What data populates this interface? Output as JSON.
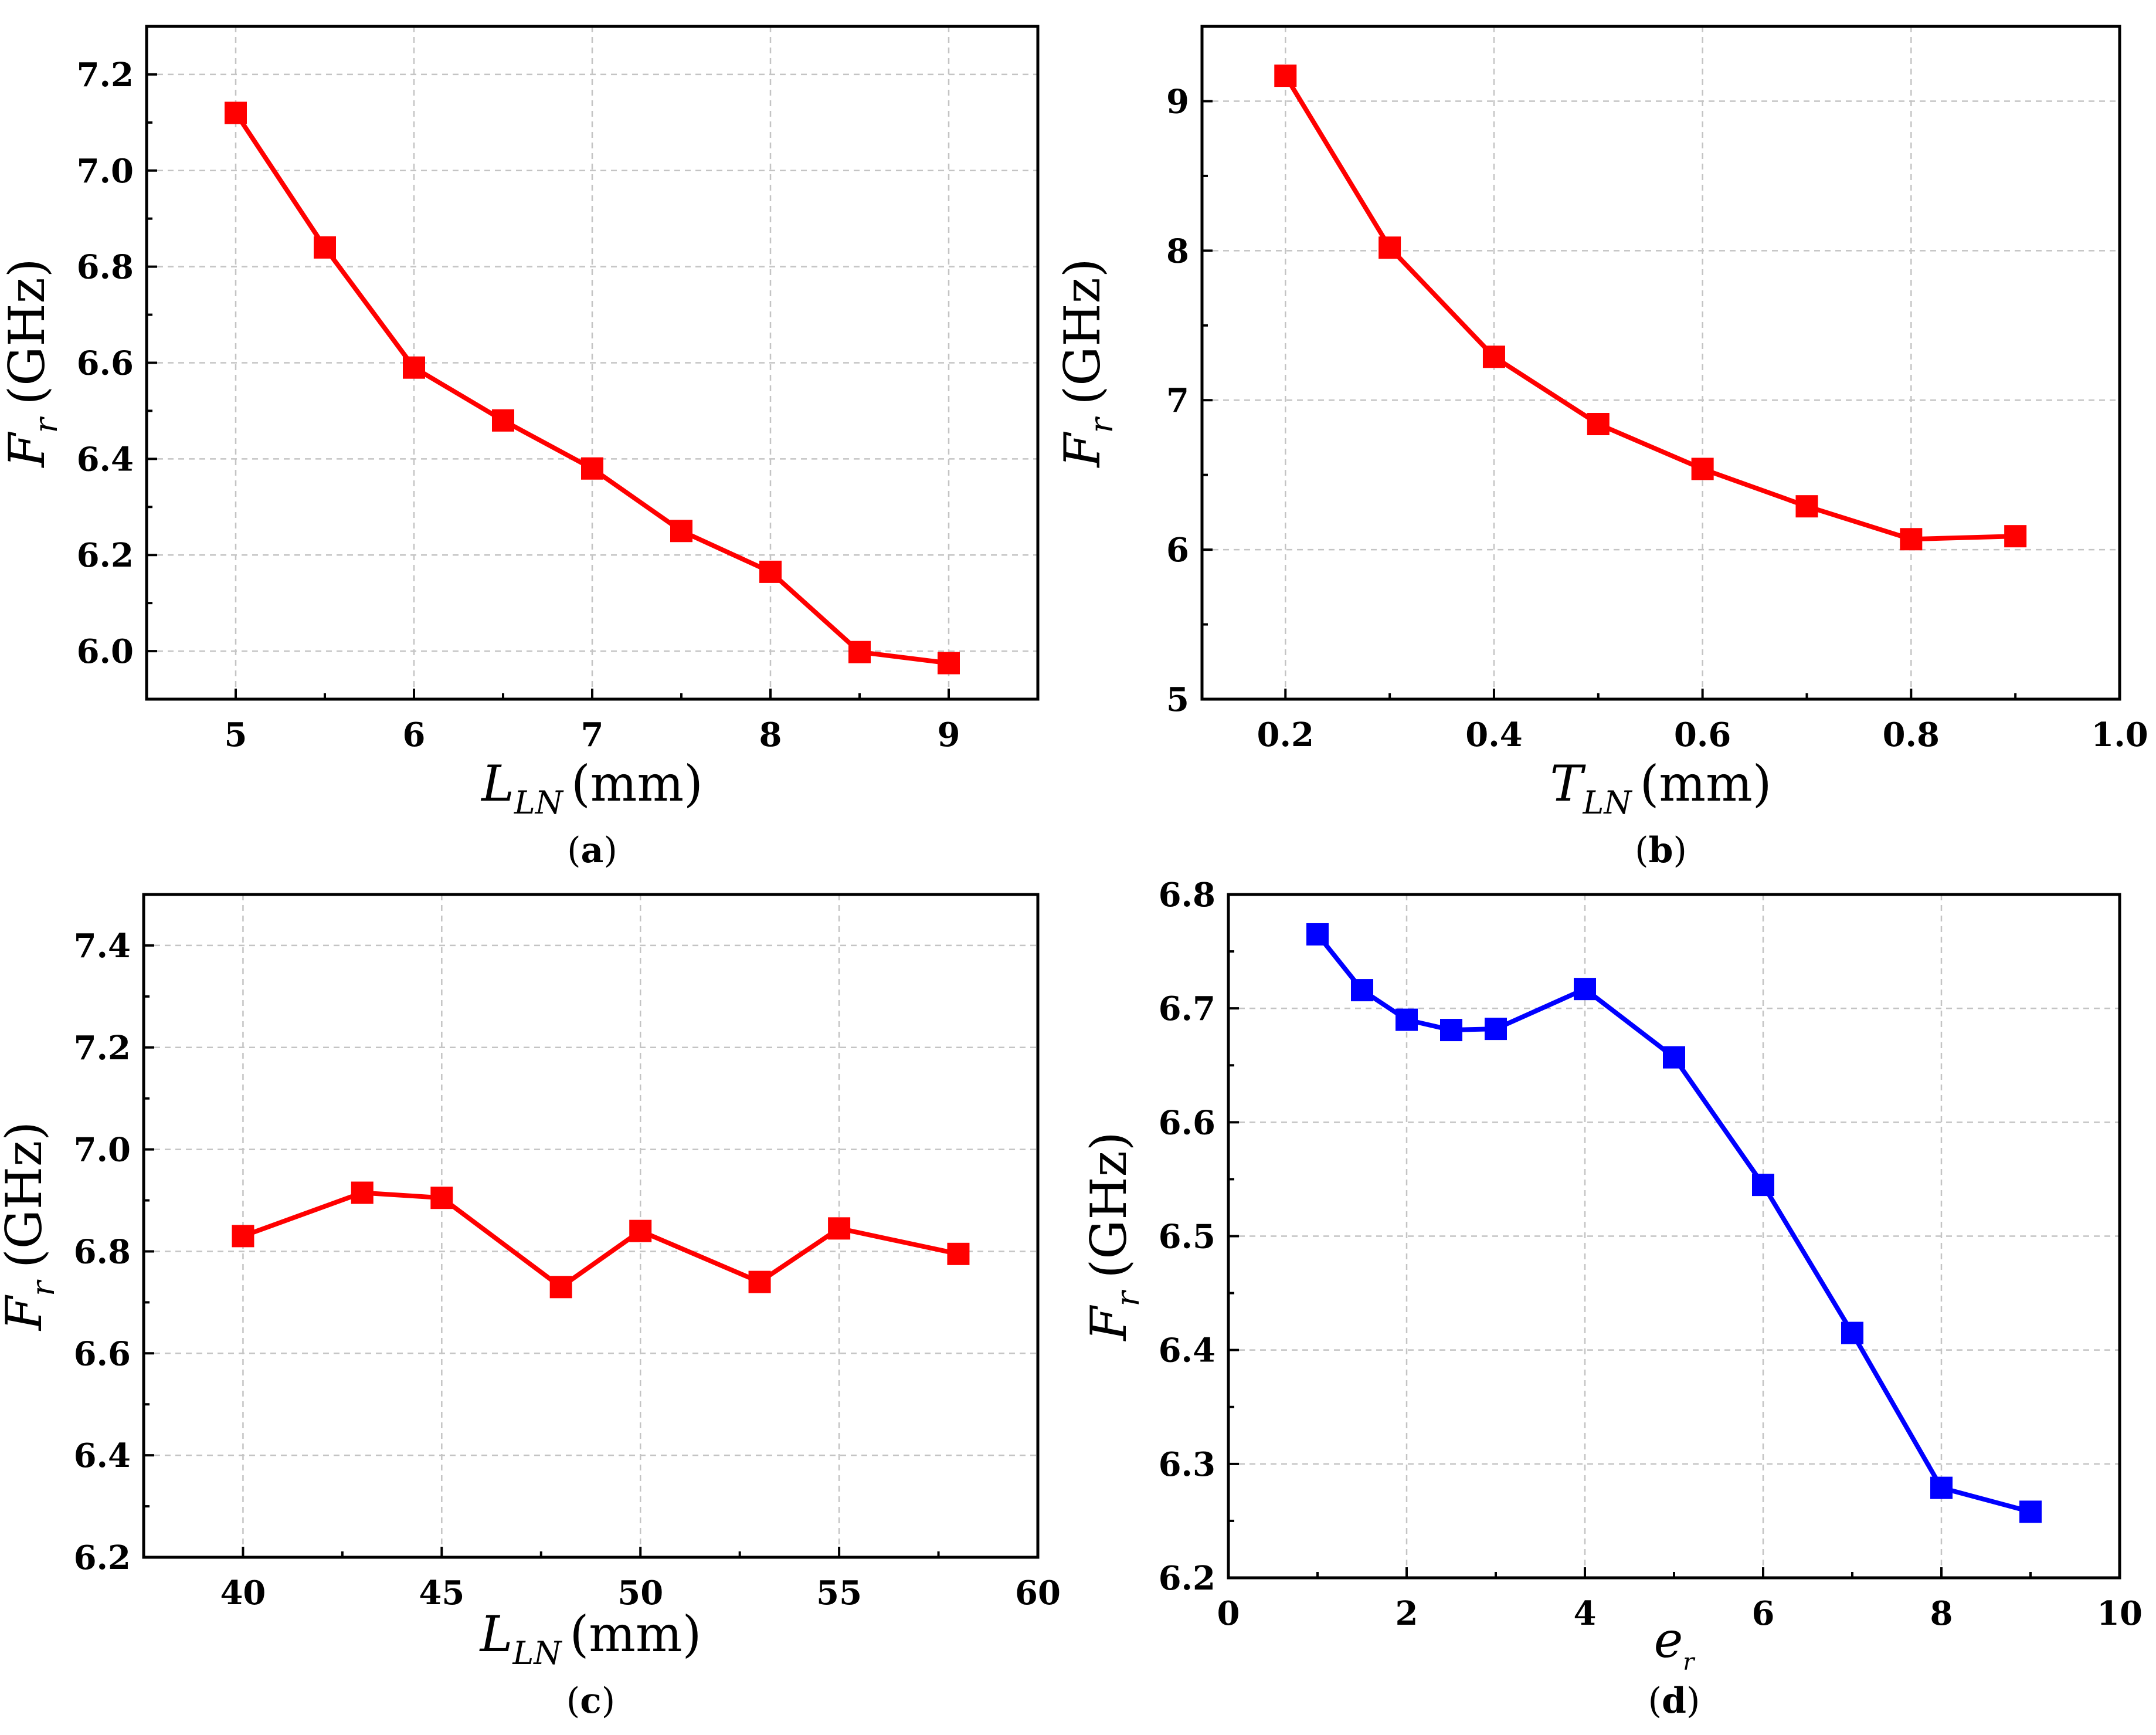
{
  "chart_data": [
    {
      "id": "a",
      "type": "line",
      "panel_label": "a",
      "xlabel": {
        "var": "L",
        "sub": "LN",
        "unit": "(mm)"
      },
      "ylabel": {
        "var": "F",
        "sub": "r",
        "unit": "(GHz)"
      },
      "xlim": [
        4.5,
        9.5
      ],
      "ylim": [
        5.9,
        7.3
      ],
      "xticks": [
        5,
        6,
        7,
        8,
        9
      ],
      "xtick_labels": [
        "5",
        "6",
        "7",
        "8",
        "9"
      ],
      "yticks": [
        6.0,
        6.2,
        6.4,
        6.6,
        6.8,
        7.0,
        7.2
      ],
      "ytick_labels": [
        "6.0",
        "6.2",
        "6.4",
        "6.6",
        "6.8",
        "7.0",
        "7.2"
      ],
      "grid": true,
      "color": "#ff0000",
      "marker": "square",
      "x": [
        5,
        5.5,
        6,
        6.5,
        7,
        7.5,
        8,
        8.5,
        9
      ],
      "y": [
        7.12,
        6.84,
        6.59,
        6.48,
        6.38,
        6.25,
        6.165,
        5.998,
        5.975
      ]
    },
    {
      "id": "b",
      "type": "line",
      "panel_label": "b",
      "xlabel": {
        "var": "T",
        "sub": "LN",
        "unit": "(mm)"
      },
      "ylabel": {
        "var": "F",
        "sub": "r",
        "unit": "(GHz)"
      },
      "xlim": [
        0.12,
        1.0
      ],
      "ylim": [
        5,
        9.5
      ],
      "xticks": [
        0.2,
        0.4,
        0.6,
        0.8,
        1.0
      ],
      "xtick_labels": [
        "0.2",
        "0.4",
        "0.6",
        "0.8",
        "1.0"
      ],
      "yticks": [
        5,
        6,
        7,
        8,
        9
      ],
      "ytick_labels": [
        "5",
        "6",
        "7",
        "8",
        "9"
      ],
      "grid": true,
      "color": "#ff0000",
      "marker": "square",
      "x": [
        0.2,
        0.3,
        0.4,
        0.5,
        0.6,
        0.7,
        0.8,
        0.9
      ],
      "y": [
        9.17,
        8.02,
        7.29,
        6.84,
        6.54,
        6.29,
        6.07,
        6.09
      ]
    },
    {
      "id": "c",
      "type": "line",
      "panel_label": "c",
      "xlabel": {
        "var": "L",
        "sub": "LN",
        "unit": "(mm)"
      },
      "ylabel": {
        "var": "F",
        "sub": "r",
        "unit": "(GHz)"
      },
      "xlim": [
        37.5,
        60
      ],
      "ylim": [
        6.2,
        7.5
      ],
      "xticks": [
        40,
        45,
        50,
        55,
        60
      ],
      "xtick_labels": [
        "40",
        "45",
        "50",
        "55",
        "60"
      ],
      "yticks": [
        6.2,
        6.4,
        6.6,
        6.8,
        7.0,
        7.2,
        7.4
      ],
      "ytick_labels": [
        "6.2",
        "6.4",
        "6.6",
        "6.8",
        "7.0",
        "7.2",
        "7.4"
      ],
      "grid": true,
      "color": "#ff0000",
      "marker": "square",
      "x": [
        40,
        43,
        45,
        48,
        50,
        53,
        55,
        58
      ],
      "y": [
        6.83,
        6.915,
        6.905,
        6.73,
        6.84,
        6.74,
        6.845,
        6.795
      ]
    },
    {
      "id": "d",
      "type": "line",
      "panel_label": "d",
      "xlabel": {
        "var": "e",
        "sub": "r",
        "unit": ""
      },
      "ylabel": {
        "var": "F",
        "sub": "r",
        "unit": "(GHz)"
      },
      "xlim": [
        0,
        10
      ],
      "ylim": [
        6.2,
        6.8
      ],
      "xticks": [
        0,
        2,
        4,
        6,
        8,
        10
      ],
      "xtick_labels": [
        "0",
        "2",
        "4",
        "6",
        "8",
        "10"
      ],
      "yticks": [
        6.2,
        6.3,
        6.4,
        6.5,
        6.6,
        6.7,
        6.8
      ],
      "ytick_labels": [
        "6.2",
        "6.3",
        "6.4",
        "6.5",
        "6.6",
        "6.7",
        "6.8"
      ],
      "grid": true,
      "color": "#0000ff",
      "marker": "square",
      "x": [
        1,
        1.5,
        2,
        2.5,
        3,
        4,
        5,
        6,
        7,
        8,
        9
      ],
      "y": [
        6.765,
        6.716,
        6.69,
        6.681,
        6.682,
        6.717,
        6.657,
        6.545,
        6.415,
        6.279,
        6.258
      ]
    }
  ]
}
